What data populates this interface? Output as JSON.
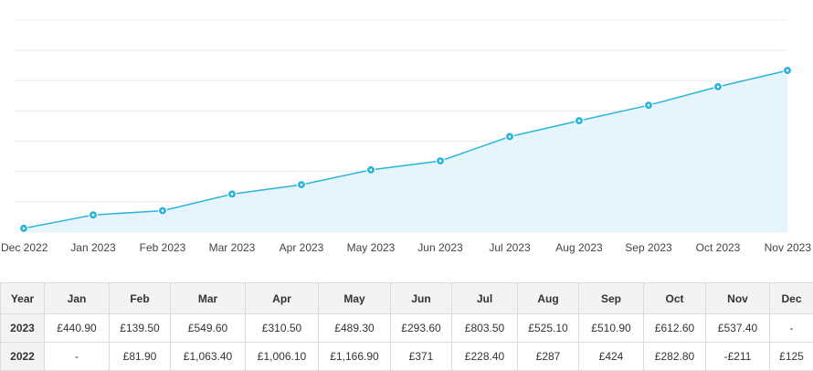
{
  "chart_data": {
    "type": "area",
    "categories": [
      "Dec 2022",
      "Jan 2023",
      "Feb 2023",
      "Mar 2023",
      "Apr 2023",
      "May 2023",
      "Jun 2023",
      "Jul 2023",
      "Aug 2023",
      "Sep 2023",
      "Oct 2023",
      "Nov 2023"
    ],
    "series": [
      {
        "values": [
          125,
          566,
          706,
          1255,
          1566,
          2055,
          2349,
          3152,
          3677,
          4188,
          4801,
          5338
        ]
      }
    ],
    "ylim": [
      0,
      7000
    ],
    "grid": true,
    "line_color": "#2bb5da",
    "fill_color": "#e6f5fb",
    "marker_color": "#2bb5da"
  },
  "table": {
    "headers": [
      "Year",
      "Jan",
      "Feb",
      "Mar",
      "Apr",
      "May",
      "Jun",
      "Jul",
      "Aug",
      "Sep",
      "Oct",
      "Nov",
      "Dec"
    ],
    "rows": [
      {
        "year": "2023",
        "cells": [
          "£440.90",
          "£139.50",
          "£549.60",
          "£310.50",
          "£489.30",
          "£293.60",
          "£803.50",
          "£525.10",
          "£510.90",
          "£612.60",
          "£537.40",
          "-"
        ]
      },
      {
        "year": "2022",
        "cells": [
          "-",
          "£81.90",
          "£1,063.40",
          "£1,006.10",
          "£1,166.90",
          "£371",
          "£228.40",
          "£287",
          "£424",
          "£282.80",
          "-£211",
          "£125"
        ]
      }
    ]
  }
}
